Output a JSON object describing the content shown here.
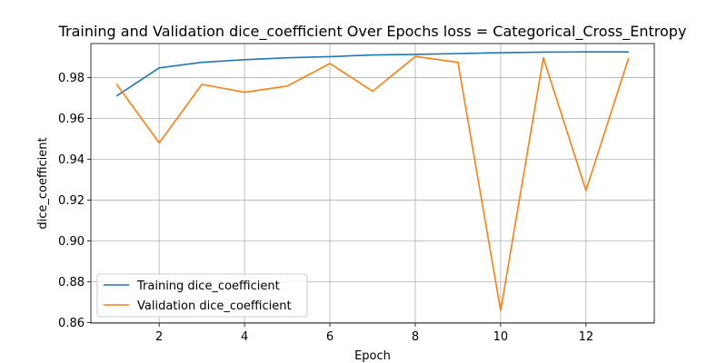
{
  "chart_data": {
    "type": "line",
    "title": "Training and Validation dice_coefficient Over Epochs loss = Categorical_Cross_Entropy",
    "xlabel": "Epoch",
    "ylabel": "dice_coefficient",
    "xlim": [
      0.4,
      13.6
    ],
    "ylim": [
      0.8597,
      0.9967
    ],
    "xticks": [
      2,
      4,
      6,
      8,
      10,
      12
    ],
    "yticks": [
      0.86,
      0.88,
      0.9,
      0.92,
      0.94,
      0.96,
      0.98
    ],
    "ytick_labels": [
      "0.86",
      "0.88",
      "0.90",
      "0.92",
      "0.94",
      "0.96",
      "0.98"
    ],
    "grid": true,
    "legend_position": "lower-left",
    "x": [
      1,
      2,
      3,
      4,
      5,
      6,
      7,
      8,
      9,
      10,
      11,
      12,
      13
    ],
    "series": [
      {
        "name": "Training dice_coefficient",
        "color": "#1f77b4",
        "values": [
          0.971,
          0.9848,
          0.9875,
          0.9888,
          0.9897,
          0.9903,
          0.9911,
          0.9914,
          0.9918,
          0.9922,
          0.9925,
          0.9926,
          0.9926
        ]
      },
      {
        "name": "Validation dice_coefficient",
        "color": "#ff7f0e",
        "values": [
          0.9768,
          0.948,
          0.9767,
          0.9728,
          0.9759,
          0.9869,
          0.9733,
          0.9904,
          0.9875,
          0.8658,
          0.9897,
          0.9247,
          0.9897
        ]
      }
    ]
  }
}
